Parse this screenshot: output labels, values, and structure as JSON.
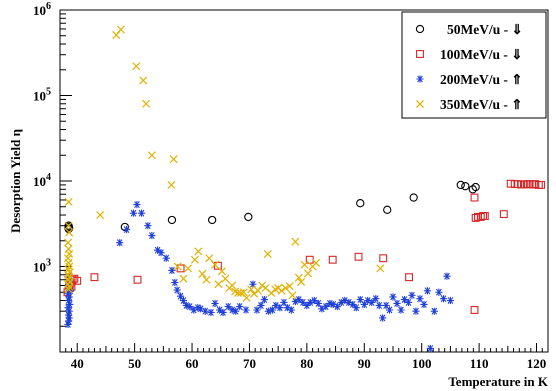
{
  "chart_data": {
    "type": "scatter",
    "xlabel": "Temperature in K",
    "ylabel": "Desorption Yield η",
    "xlim": [
      37,
      122
    ],
    "ylim": [
      100,
      1000000
    ],
    "y_scale": "log",
    "x_ticks": [
      40,
      50,
      60,
      70,
      80,
      90,
      100,
      110,
      120
    ],
    "y_tick_labels": [
      {
        "value": 1000,
        "base": "10",
        "exp": "3"
      },
      {
        "value": 10000,
        "base": "10",
        "exp": "4"
      },
      {
        "value": 100000,
        "base": "10",
        "exp": "5"
      },
      {
        "value": 1000000,
        "base": "10",
        "exp": "6"
      }
    ],
    "grid": false,
    "legend_position": "top-right",
    "series": [
      {
        "name": "50MeV/u - ⇓",
        "marker": "circle",
        "color": "#000000",
        "points": [
          [
            38.5,
            3000
          ],
          [
            38.5,
            2900
          ],
          [
            38.6,
            2800
          ],
          [
            38.5,
            2750
          ],
          [
            48.3,
            2900
          ],
          [
            56.5,
            3500
          ],
          [
            63.5,
            3500
          ],
          [
            69.8,
            3800
          ],
          [
            89.3,
            5500
          ],
          [
            94.0,
            4600
          ],
          [
            98.6,
            6400
          ],
          [
            106.8,
            9000
          ],
          [
            107.6,
            8700
          ],
          [
            108.9,
            8000
          ],
          [
            109.4,
            8500
          ]
        ]
      },
      {
        "name": "100MeV/u - ⇓",
        "marker": "square",
        "color": "#d62728",
        "points": [
          [
            38.3,
            500
          ],
          [
            38.6,
            600
          ],
          [
            38.9,
            650
          ],
          [
            39.2,
            700
          ],
          [
            39.5,
            720
          ],
          [
            40.0,
            680
          ],
          [
            38.7,
            560
          ],
          [
            39.0,
            580
          ],
          [
            43.0,
            750
          ],
          [
            50.5,
            700
          ],
          [
            58.0,
            950
          ],
          [
            64.5,
            1020
          ],
          [
            80.5,
            1200
          ],
          [
            84.5,
            1200
          ],
          [
            89.0,
            1300
          ],
          [
            93.3,
            1250
          ],
          [
            97.8,
            750
          ],
          [
            109.2,
            310
          ],
          [
            109.4,
            3700
          ],
          [
            109.8,
            3800
          ],
          [
            110.3,
            3800
          ],
          [
            110.7,
            3900
          ],
          [
            111.0,
            3900
          ],
          [
            109.2,
            6400
          ],
          [
            114.3,
            4100
          ],
          [
            115.5,
            9300
          ],
          [
            116.2,
            9200
          ],
          [
            116.8,
            9200
          ],
          [
            117.3,
            9100
          ],
          [
            117.8,
            9100
          ],
          [
            118.3,
            9200
          ],
          [
            118.8,
            9200
          ],
          [
            119.3,
            9100
          ],
          [
            119.8,
            9200
          ],
          [
            120.4,
            9000
          ],
          [
            120.8,
            9000
          ]
        ]
      },
      {
        "name": "200MeV/u - ⇑",
        "marker": "asterisk",
        "color": "#1f3fd9",
        "points": [
          [
            38.4,
            210
          ],
          [
            38.5,
            230
          ],
          [
            38.6,
            250
          ],
          [
            38.5,
            270
          ],
          [
            38.6,
            300
          ],
          [
            38.4,
            330
          ],
          [
            38.7,
            360
          ],
          [
            38.5,
            400
          ],
          [
            38.6,
            440
          ],
          [
            38.4,
            480
          ],
          [
            38.8,
            520
          ],
          [
            38.6,
            560
          ],
          [
            38.5,
            620
          ],
          [
            38.7,
            680
          ],
          [
            38.4,
            760
          ],
          [
            47.4,
            1900
          ],
          [
            48.6,
            2700
          ],
          [
            49.8,
            4200
          ],
          [
            50.4,
            5300
          ],
          [
            51.2,
            4200
          ],
          [
            52.3,
            3000
          ],
          [
            53.0,
            2300
          ],
          [
            54.0,
            1550
          ],
          [
            54.6,
            1450
          ],
          [
            55.5,
            1250
          ],
          [
            56.5,
            900
          ],
          [
            57.0,
            650
          ],
          [
            57.4,
            530
          ],
          [
            58.0,
            450
          ],
          [
            58.5,
            400
          ],
          [
            59.0,
            350
          ],
          [
            59.6,
            340
          ],
          [
            60.3,
            310
          ],
          [
            61.0,
            330
          ],
          [
            61.5,
            320
          ],
          [
            62.3,
            300
          ],
          [
            63.3,
            290
          ],
          [
            64.0,
            370
          ],
          [
            64.8,
            310
          ],
          [
            65.4,
            290
          ],
          [
            66.3,
            340
          ],
          [
            67.0,
            310
          ],
          [
            67.6,
            300
          ],
          [
            68.3,
            340
          ],
          [
            69.4,
            310
          ],
          [
            70.6,
            620
          ],
          [
            71.3,
            310
          ],
          [
            72.0,
            350
          ],
          [
            72.6,
            410
          ],
          [
            73.3,
            300
          ],
          [
            74.0,
            310
          ],
          [
            74.6,
            350
          ],
          [
            75.3,
            330
          ],
          [
            76.0,
            380
          ],
          [
            76.6,
            330
          ],
          [
            77.3,
            310
          ],
          [
            78.0,
            390
          ],
          [
            78.6,
            410
          ],
          [
            79.3,
            380
          ],
          [
            80.0,
            350
          ],
          [
            80.6,
            380
          ],
          [
            81.3,
            400
          ],
          [
            82.0,
            370
          ],
          [
            82.6,
            320
          ],
          [
            83.3,
            340
          ],
          [
            84.0,
            370
          ],
          [
            84.6,
            360
          ],
          [
            85.3,
            340
          ],
          [
            86.0,
            380
          ],
          [
            86.6,
            400
          ],
          [
            87.3,
            380
          ],
          [
            88.0,
            360
          ],
          [
            88.6,
            330
          ],
          [
            89.3,
            410
          ],
          [
            90.0,
            360
          ],
          [
            90.6,
            400
          ],
          [
            91.3,
            380
          ],
          [
            92.0,
            420
          ],
          [
            92.6,
            350
          ],
          [
            93.2,
            250
          ],
          [
            93.8,
            350
          ],
          [
            94.4,
            310
          ],
          [
            95.0,
            440
          ],
          [
            95.7,
            370
          ],
          [
            96.4,
            310
          ],
          [
            97.0,
            410
          ],
          [
            97.7,
            380
          ],
          [
            98.3,
            460
          ],
          [
            99.0,
            300
          ],
          [
            99.7,
            420
          ],
          [
            100.4,
            360
          ],
          [
            101.0,
            520
          ],
          [
            101.5,
            110
          ],
          [
            102.2,
            300
          ],
          [
            103.0,
            500
          ],
          [
            103.8,
            420
          ],
          [
            104.4,
            770
          ],
          [
            105.0,
            400
          ]
        ]
      },
      {
        "name": "350MeV/u - ⇑",
        "marker": "cross",
        "color": "#e3b100",
        "points": [
          [
            38.5,
            5700
          ],
          [
            38.5,
            3000
          ],
          [
            38.6,
            2500
          ],
          [
            38.4,
            1900
          ],
          [
            38.5,
            1600
          ],
          [
            38.6,
            1400
          ],
          [
            38.4,
            1250
          ],
          [
            38.5,
            1100
          ],
          [
            38.6,
            1000
          ],
          [
            38.5,
            920
          ],
          [
            38.7,
            860
          ],
          [
            38.4,
            800
          ],
          [
            38.6,
            750
          ],
          [
            38.5,
            700
          ],
          [
            38.7,
            660
          ],
          [
            38.4,
            620
          ],
          [
            38.6,
            580
          ],
          [
            38.5,
            540
          ],
          [
            44.0,
            4000
          ],
          [
            46.8,
            510000
          ],
          [
            47.6,
            590000
          ],
          [
            50.3,
            220000
          ],
          [
            51.5,
            150000
          ],
          [
            52.0,
            80000
          ],
          [
            53.0,
            20000
          ],
          [
            56.4,
            9000
          ],
          [
            56.8,
            18000
          ],
          [
            57.5,
            1000
          ],
          [
            58.5,
            720
          ],
          [
            59.3,
            950
          ],
          [
            60.5,
            1200
          ],
          [
            61.1,
            1500
          ],
          [
            61.8,
            820
          ],
          [
            62.5,
            700
          ],
          [
            63.0,
            1250
          ],
          [
            64.0,
            1050
          ],
          [
            64.6,
            620
          ],
          [
            65.2,
            880
          ],
          [
            65.8,
            720
          ],
          [
            66.5,
            560
          ],
          [
            67.0,
            600
          ],
          [
            67.5,
            510
          ],
          [
            68.0,
            490
          ],
          [
            68.5,
            490
          ],
          [
            69.0,
            500
          ],
          [
            69.5,
            430
          ],
          [
            70.3,
            540
          ],
          [
            70.8,
            480
          ],
          [
            71.5,
            520
          ],
          [
            72.2,
            600
          ],
          [
            72.8,
            560
          ],
          [
            73.2,
            1400
          ],
          [
            73.8,
            490
          ],
          [
            74.5,
            540
          ],
          [
            75.0,
            560
          ],
          [
            75.6,
            520
          ],
          [
            76.3,
            560
          ],
          [
            77.0,
            590
          ],
          [
            77.5,
            460
          ],
          [
            78.0,
            1950
          ],
          [
            78.6,
            740
          ],
          [
            79.0,
            660
          ],
          [
            79.6,
            1050
          ],
          [
            80.2,
            830
          ],
          [
            81.0,
            1000
          ],
          [
            81.6,
            1100
          ],
          [
            92.8,
            950
          ]
        ]
      }
    ]
  },
  "legend": [
    {
      "label": "50MeV/u - ⇓",
      "marker": "circle",
      "color": "#000000"
    },
    {
      "label": "100MeV/u - ⇓",
      "marker": "square",
      "color": "#d62728"
    },
    {
      "label": "200MeV/u - ⇑",
      "marker": "asterisk",
      "color": "#1f3fd9"
    },
    {
      "label": "350MeV/u - ⇑",
      "marker": "cross",
      "color": "#e3b100"
    }
  ]
}
